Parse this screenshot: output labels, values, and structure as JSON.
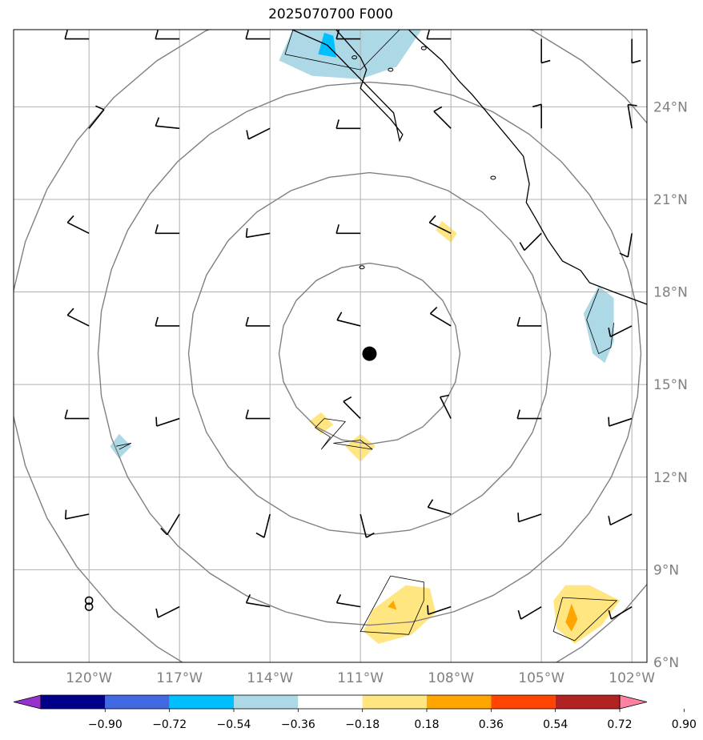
{
  "chart_data": {
    "type": "map",
    "title": "2025070700 F000",
    "extent": {
      "lon": [
        -122.5,
        -101.5
      ],
      "lat": [
        6.0,
        26.5
      ]
    },
    "lon_ticks": [
      {
        "value": -120,
        "label": "120°W"
      },
      {
        "value": -117,
        "label": "117°W"
      },
      {
        "value": -114,
        "label": "114°W"
      },
      {
        "value": -111,
        "label": "111°W"
      },
      {
        "value": -108,
        "label": "108°W"
      },
      {
        "value": -105,
        "label": "105°W"
      },
      {
        "value": -102,
        "label": "102°W"
      }
    ],
    "lat_ticks": [
      {
        "value": 6,
        "label": "6°N"
      },
      {
        "value": 9,
        "label": "9°N"
      },
      {
        "value": 12,
        "label": "12°N"
      },
      {
        "value": 15,
        "label": "15°N"
      },
      {
        "value": 18,
        "label": "18°N"
      },
      {
        "value": 21,
        "label": "21°N"
      },
      {
        "value": 24,
        "label": "24°N"
      }
    ],
    "storm_center": {
      "lon": -110.7,
      "lat": 16.0
    },
    "range_rings_deg": [
      3,
      6,
      9,
      12
    ],
    "colorbar": {
      "levels": [
        "−0.90",
        "−0.72",
        "−0.54",
        "−0.36",
        "−0.18",
        "0.18",
        "0.36",
        "0.54",
        "0.72",
        "0.90"
      ],
      "colors": [
        "#9932cc",
        "#00008b",
        "#4169e1",
        "#00bfff",
        "#add8e6",
        "#ffffff",
        "#ffe680",
        "#ffa500",
        "#ff4500",
        "#b22222",
        "#ff80a0"
      ]
    },
    "shaded_areas": [
      {
        "value": -0.2,
        "polygon": [
          [
            -113.2,
            26.6
          ],
          [
            -113.7,
            25.5
          ],
          [
            -112.6,
            25.0
          ],
          [
            -111.0,
            24.9
          ],
          [
            -109.8,
            25.3
          ],
          [
            -108.9,
            26.6
          ]
        ]
      },
      {
        "value": -0.4,
        "polygon": [
          [
            -112.2,
            26.4
          ],
          [
            -112.4,
            25.7
          ],
          [
            -111.8,
            25.6
          ],
          [
            -111.9,
            26.3
          ]
        ]
      },
      {
        "value": -0.2,
        "polygon": [
          [
            -103.1,
            18.2
          ],
          [
            -103.6,
            17.3
          ],
          [
            -103.3,
            16.0
          ],
          [
            -102.9,
            15.7
          ],
          [
            -102.6,
            16.4
          ],
          [
            -102.6,
            17.8
          ]
        ]
      },
      {
        "value": -0.2,
        "polygon": [
          [
            -119.0,
            13.4
          ],
          [
            -119.3,
            13.0
          ],
          [
            -119.0,
            12.6
          ],
          [
            -118.6,
            13.0
          ]
        ]
      },
      {
        "value": 0.2,
        "polygon": [
          [
            -108.3,
            20.3
          ],
          [
            -108.5,
            20.0
          ],
          [
            -108.0,
            19.6
          ],
          [
            -107.8,
            19.9
          ]
        ]
      },
      {
        "value": 0.2,
        "polygon": [
          [
            -112.3,
            14.1
          ],
          [
            -112.7,
            13.8
          ],
          [
            -112.3,
            13.4
          ],
          [
            -111.9,
            13.7
          ]
        ]
      },
      {
        "value": 0.2,
        "polygon": [
          [
            -111.0,
            13.4
          ],
          [
            -111.5,
            13.0
          ],
          [
            -111.0,
            12.5
          ],
          [
            -110.5,
            13.0
          ]
        ]
      },
      {
        "value": 0.2,
        "polygon": [
          [
            -109.5,
            8.5
          ],
          [
            -110.6,
            7.7
          ],
          [
            -110.9,
            7.0
          ],
          [
            -110.4,
            6.6
          ],
          [
            -109.3,
            6.9
          ],
          [
            -108.5,
            7.6
          ],
          [
            -108.7,
            8.4
          ]
        ]
      },
      {
        "value": 0.2,
        "polygon": [
          [
            -103.4,
            8.5
          ],
          [
            -104.2,
            8.5
          ],
          [
            -104.6,
            8.0
          ],
          [
            -104.5,
            7.1
          ],
          [
            -103.9,
            6.6
          ],
          [
            -103.0,
            7.2
          ],
          [
            -102.4,
            8.0
          ]
        ]
      },
      {
        "value": 0.4,
        "polygon": [
          [
            -104.0,
            7.9
          ],
          [
            -104.2,
            7.3
          ],
          [
            -104.0,
            7.0
          ],
          [
            -103.8,
            7.4
          ]
        ]
      },
      {
        "value": 0.4,
        "polygon": [
          [
            -109.9,
            8.0
          ],
          [
            -110.1,
            7.8
          ],
          [
            -109.8,
            7.7
          ]
        ]
      }
    ],
    "contour_lines": [
      [
        [
          -113.2,
          26.6
        ],
        [
          -113.5,
          25.7
        ],
        [
          -111.0,
          25.2
        ],
        [
          -109.6,
          26.6
        ]
      ],
      [
        [
          -103.1,
          18.1
        ],
        [
          -103.5,
          17.1
        ],
        [
          -103.1,
          16.0
        ],
        [
          -102.7,
          16.2
        ],
        [
          -102.6,
          17.0
        ]
      ],
      [
        [
          -119.1,
          13.0
        ],
        [
          -118.6,
          13.1
        ],
        [
          -119.0,
          12.9
        ]
      ],
      [
        [
          -112.2,
          13.9
        ],
        [
          -112.5,
          13.6
        ],
        [
          -112.0,
          13.3
        ],
        [
          -112.3,
          12.9
        ],
        [
          -111.5,
          13.8
        ],
        [
          -112.2,
          13.9
        ]
      ],
      [
        [
          -111.9,
          13.1
        ],
        [
          -110.6,
          12.9
        ],
        [
          -111.0,
          13.2
        ],
        [
          -111.9,
          13.1
        ]
      ],
      [
        [
          -110.0,
          8.8
        ],
        [
          -111.0,
          7.0
        ],
        [
          -109.4,
          6.9
        ],
        [
          -108.9,
          8.0
        ],
        [
          -108.9,
          8.6
        ],
        [
          -110.0,
          8.8
        ]
      ],
      [
        [
          -104.3,
          8.1
        ],
        [
          -102.5,
          8.0
        ],
        [
          -103.9,
          6.7
        ],
        [
          -104.6,
          7.0
        ],
        [
          -104.3,
          8.1
        ]
      ]
    ],
    "coastline": [
      [
        -111.9,
        26.6
      ],
      [
        -111.0,
        25.6
      ],
      [
        -110.8,
        25.2
      ],
      [
        -111.0,
        24.6
      ],
      [
        -110.6,
        24.2
      ],
      [
        -110.0,
        23.6
      ],
      [
        -109.6,
        23.1
      ],
      [
        -109.7,
        22.9
      ],
      [
        -109.9,
        23.8
      ],
      [
        -110.4,
        24.3
      ],
      [
        -111.0,
        24.9
      ],
      [
        -111.6,
        25.5
      ],
      [
        -112.1,
        26.0
      ],
      [
        -113.5,
        26.6
      ]
    ],
    "coastline_main": [
      [
        -109.5,
        26.6
      ],
      [
        -109.1,
        26.2
      ],
      [
        -108.3,
        25.5
      ],
      [
        -107.7,
        24.8
      ],
      [
        -107.3,
        24.4
      ],
      [
        -106.7,
        23.7
      ],
      [
        -106.1,
        23.0
      ],
      [
        -105.6,
        22.4
      ],
      [
        -105.4,
        21.5
      ],
      [
        -105.5,
        20.9
      ],
      [
        -105.2,
        20.4
      ],
      [
        -104.8,
        19.7
      ],
      [
        -104.3,
        19.0
      ],
      [
        -103.7,
        18.7
      ],
      [
        -103.4,
        18.3
      ],
      [
        -102.6,
        18.0
      ],
      [
        -101.5,
        17.6
      ]
    ],
    "islands": [
      {
        "lon": -110.95,
        "lat": 18.8
      },
      {
        "lon": -106.6,
        "lat": 21.7
      },
      {
        "lon": -110.0,
        "lat": 25.2
      },
      {
        "lon": -108.9,
        "lat": 25.9
      },
      {
        "lon": -111.2,
        "lat": 25.6
      }
    ],
    "station_circle": {
      "lon": -120.0,
      "lat": 8.0
    },
    "wind_barbs": [
      {
        "lon": -120.0,
        "lat": 26.2,
        "u": -8,
        "v": 0
      },
      {
        "lon": -117.0,
        "lat": 26.2,
        "u": -8,
        "v": 0
      },
      {
        "lon": -114.0,
        "lat": 26.2,
        "u": -8,
        "v": 0
      },
      {
        "lon": -111.0,
        "lat": 26.2,
        "u": -8,
        "v": 0
      },
      {
        "lon": -108.0,
        "lat": 26.2,
        "u": -8,
        "v": 0
      },
      {
        "lon": -105.0,
        "lat": 26.2,
        "u": 0,
        "v": -8
      },
      {
        "lon": -102.0,
        "lat": 26.2,
        "u": 0,
        "v": -8
      },
      {
        "lon": -120.0,
        "lat": 23.3,
        "u": 8,
        "v": 10
      },
      {
        "lon": -117.0,
        "lat": 23.3,
        "u": -10,
        "v": 1
      },
      {
        "lon": -114.0,
        "lat": 23.3,
        "u": -10,
        "v": -5
      },
      {
        "lon": -111.0,
        "lat": 23.3,
        "u": -10,
        "v": 0
      },
      {
        "lon": -108.0,
        "lat": 23.3,
        "u": -8,
        "v": 8
      },
      {
        "lon": -105.0,
        "lat": 23.3,
        "u": 0,
        "v": 12
      },
      {
        "lon": -102.0,
        "lat": 23.3,
        "u": -2,
        "v": 12
      },
      {
        "lon": -120.0,
        "lat": 19.9,
        "u": -10,
        "v": 5
      },
      {
        "lon": -117.0,
        "lat": 19.9,
        "u": -12,
        "v": 0
      },
      {
        "lon": -114.0,
        "lat": 19.9,
        "u": -12,
        "v": -2
      },
      {
        "lon": -111.0,
        "lat": 19.9,
        "u": -12,
        "v": 0
      },
      {
        "lon": -108.0,
        "lat": 19.9,
        "u": -10,
        "v": 5
      },
      {
        "lon": -105.0,
        "lat": 19.9,
        "u": -8,
        "v": -8
      },
      {
        "lon": -102.0,
        "lat": 19.9,
        "u": -2,
        "v": -12
      },
      {
        "lon": -120.0,
        "lat": 16.9,
        "u": -10,
        "v": 5
      },
      {
        "lon": -117.0,
        "lat": 16.9,
        "u": -12,
        "v": 0
      },
      {
        "lon": -114.0,
        "lat": 16.9,
        "u": -12,
        "v": 0
      },
      {
        "lon": -111.0,
        "lat": 16.9,
        "u": -12,
        "v": 3
      },
      {
        "lon": -108.0,
        "lat": 16.9,
        "u": -10,
        "v": 6
      },
      {
        "lon": -105.0,
        "lat": 16.9,
        "u": -12,
        "v": 0
      },
      {
        "lon": -102.0,
        "lat": 16.9,
        "u": -10,
        "v": -5
      },
      {
        "lon": -120.0,
        "lat": 13.9,
        "u": -12,
        "v": 0
      },
      {
        "lon": -117.0,
        "lat": 13.9,
        "u": -12,
        "v": -4
      },
      {
        "lon": -114.0,
        "lat": 13.9,
        "u": -12,
        "v": 0
      },
      {
        "lon": -111.0,
        "lat": 13.9,
        "u": -8,
        "v": 8
      },
      {
        "lon": -108.0,
        "lat": 13.9,
        "u": -5,
        "v": 10
      },
      {
        "lon": -105.0,
        "lat": 13.9,
        "u": -12,
        "v": 0
      },
      {
        "lon": -102.0,
        "lat": 13.9,
        "u": -12,
        "v": -4
      },
      {
        "lon": -120.0,
        "lat": 10.8,
        "u": -10,
        "v": -2
      },
      {
        "lon": -117.0,
        "lat": 10.8,
        "u": -6,
        "v": -10
      },
      {
        "lon": -114.0,
        "lat": 10.8,
        "u": -3,
        "v": -12
      },
      {
        "lon": -111.0,
        "lat": 10.8,
        "u": 3,
        "v": -12
      },
      {
        "lon": -108.0,
        "lat": 10.8,
        "u": -10,
        "v": 3
      },
      {
        "lon": -105.0,
        "lat": 10.8,
        "u": -12,
        "v": -4
      },
      {
        "lon": -102.0,
        "lat": 10.8,
        "u": -10,
        "v": -5
      },
      {
        "lon": -120.0,
        "lat": 7.8,
        "u": 0,
        "v": 0
      },
      {
        "lon": -117.0,
        "lat": 7.8,
        "u": -10,
        "v": -5
      },
      {
        "lon": -114.0,
        "lat": 7.8,
        "u": -12,
        "v": 2
      },
      {
        "lon": -111.0,
        "lat": 7.8,
        "u": -12,
        "v": 2
      },
      {
        "lon": -108.0,
        "lat": 7.8,
        "u": -12,
        "v": -4
      },
      {
        "lon": -105.0,
        "lat": 7.8,
        "u": -10,
        "v": -6
      },
      {
        "lon": -102.0,
        "lat": 7.8,
        "u": -10,
        "v": -6
      }
    ]
  }
}
